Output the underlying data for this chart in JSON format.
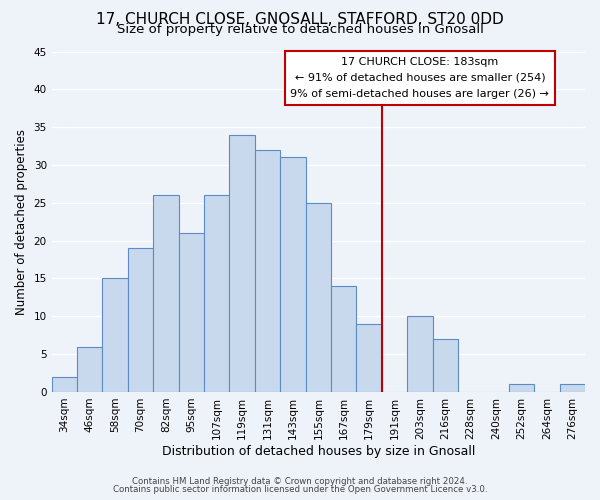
{
  "title": "17, CHURCH CLOSE, GNOSALL, STAFFORD, ST20 0DD",
  "subtitle": "Size of property relative to detached houses in Gnosall",
  "xlabel": "Distribution of detached houses by size in Gnosall",
  "ylabel": "Number of detached properties",
  "footer_lines": [
    "Contains HM Land Registry data © Crown copyright and database right 2024.",
    "Contains public sector information licensed under the Open Government Licence v3.0."
  ],
  "bar_labels": [
    "34sqm",
    "46sqm",
    "58sqm",
    "70sqm",
    "82sqm",
    "95sqm",
    "107sqm",
    "119sqm",
    "131sqm",
    "143sqm",
    "155sqm",
    "167sqm",
    "179sqm",
    "191sqm",
    "203sqm",
    "216sqm",
    "228sqm",
    "240sqm",
    "252sqm",
    "264sqm",
    "276sqm"
  ],
  "bar_values": [
    2,
    6,
    15,
    19,
    26,
    21,
    26,
    34,
    32,
    31,
    25,
    14,
    9,
    0,
    10,
    7,
    0,
    0,
    1,
    0,
    1
  ],
  "bar_color": "#c8d9ed",
  "bar_edge_color": "#5b8cc8",
  "bg_color": "#eef2f9",
  "grid_color": "#ffffff",
  "annotation_box_edge": "#c00000",
  "annotation_title": "17 CHURCH CLOSE: 183sqm",
  "annotation_line1": "← 91% of detached houses are smaller (254)",
  "annotation_line2": "9% of semi-detached houses are larger (26) →",
  "vline_x_label": "179sqm",
  "vline_color": "#c00000",
  "ylim": [
    0,
    45
  ],
  "title_fontsize": 11,
  "subtitle_fontsize": 9.5,
  "xlabel_fontsize": 9,
  "ylabel_fontsize": 8.5,
  "tick_fontsize": 7.5,
  "annotation_fontsize": 8
}
